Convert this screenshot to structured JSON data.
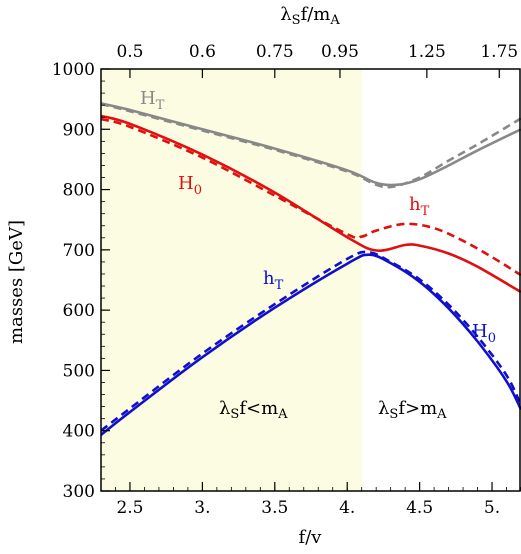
{
  "chart_data": {
    "type": "line",
    "xlabel": "f/v",
    "ylabel": "masses  [GeV]",
    "top_axis_label_main": "λ",
    "top_axis_label_sub": "S",
    "top_axis_label_rest": "f/m",
    "top_axis_label_sub2": "A",
    "xlim": [
      2.3,
      5.2
    ],
    "ylim": [
      300,
      1000
    ],
    "x_ticks": [
      2.5,
      3.0,
      3.5,
      4.0,
      4.5,
      5.0
    ],
    "x_tick_labels": [
      "2.5",
      "3.",
      "3.5",
      "4.",
      "4.5",
      "5."
    ],
    "y_ticks": [
      300,
      400,
      500,
      600,
      700,
      800,
      900,
      1000
    ],
    "y_tick_labels": [
      "300",
      "400",
      "500",
      "600",
      "700",
      "800",
      "900",
      "1000"
    ],
    "top_ticks": [
      {
        "x": 2.5,
        "label": "0.5"
      },
      {
        "x": 3.0,
        "label": "0.6"
      },
      {
        "x": 3.5,
        "label": "0.75"
      },
      {
        "x": 3.95,
        "label": "0.95"
      },
      {
        "x": 4.55,
        "label": "1.25"
      },
      {
        "x": 5.05,
        "label": "1.75"
      }
    ],
    "shaded_region": {
      "x_from": 2.3,
      "x_to": 4.1,
      "color": "#fcfce3"
    },
    "grid": false,
    "series": [
      {
        "color": "#888888",
        "dash": false,
        "x": [
          2.3,
          2.5,
          3.0,
          3.5,
          4.0,
          4.2,
          4.35,
          4.5,
          4.7,
          4.9,
          5.2
        ],
        "y": [
          943,
          932,
          900,
          868,
          832,
          811,
          808,
          817,
          840,
          865,
          900
        ]
      },
      {
        "color": "#888888",
        "dash": true,
        "x": [
          2.3,
          2.5,
          3.0,
          3.5,
          4.0,
          4.2,
          4.32,
          4.5,
          4.7,
          4.9,
          5.2
        ],
        "y": [
          942,
          930,
          898,
          866,
          830,
          808,
          805,
          820,
          848,
          875,
          918
        ]
      },
      {
        "color": "#e01010",
        "dash": false,
        "x": [
          2.3,
          2.5,
          3.0,
          3.5,
          4.0,
          4.2,
          4.4,
          4.5,
          4.7,
          4.9,
          5.2
        ],
        "y": [
          922,
          909,
          858,
          795,
          721,
          699,
          708,
          707,
          694,
          672,
          630
        ]
      },
      {
        "color": "#e01010",
        "dash": true,
        "x": [
          2.3,
          2.5,
          3.0,
          3.5,
          4.0,
          4.1,
          4.2,
          4.4,
          4.6,
          4.8,
          5.0,
          5.2
        ],
        "y": [
          917,
          904,
          853,
          790,
          726,
          722,
          732,
          743,
          736,
          715,
          688,
          658
        ]
      },
      {
        "color": "#1010cc",
        "dash": false,
        "x": [
          2.3,
          2.5,
          3.0,
          3.5,
          4.0,
          4.15,
          4.3,
          4.5,
          4.7,
          4.9,
          5.1,
          5.2
        ],
        "y": [
          393,
          431,
          522,
          604,
          677,
          692,
          678,
          647,
          603,
          548,
          482,
          435
        ]
      },
      {
        "color": "#1010cc",
        "dash": true,
        "x": [
          2.3,
          2.5,
          3.0,
          3.5,
          4.0,
          4.15,
          4.3,
          4.5,
          4.7,
          4.9,
          5.1,
          5.2
        ],
        "y": [
          400,
          437,
          528,
          610,
          685,
          696,
          680,
          651,
          609,
          556,
          492,
          442
        ]
      }
    ],
    "annotations": [
      {
        "id": "HT-top",
        "main": "H",
        "sub": "T",
        "color": "#888888"
      },
      {
        "id": "H0-red",
        "main": "H",
        "sub": "0",
        "color": "#e01010"
      },
      {
        "id": "hT-red",
        "main": "h",
        "sub": "T",
        "color": "#e01010"
      },
      {
        "id": "hT-blue",
        "main": "h",
        "sub": "T",
        "color": "#1010cc"
      },
      {
        "id": "H0-blue",
        "main": "H",
        "sub": "0",
        "color": "#1010cc"
      },
      {
        "id": "region-left",
        "main": "λ",
        "sub": "S",
        "rest": "f<m",
        "sub2": "A",
        "color": "#000000"
      },
      {
        "id": "region-right",
        "main": "λ",
        "sub": "S",
        "rest": "f>m",
        "sub2": "A",
        "color": "#000000"
      }
    ]
  }
}
